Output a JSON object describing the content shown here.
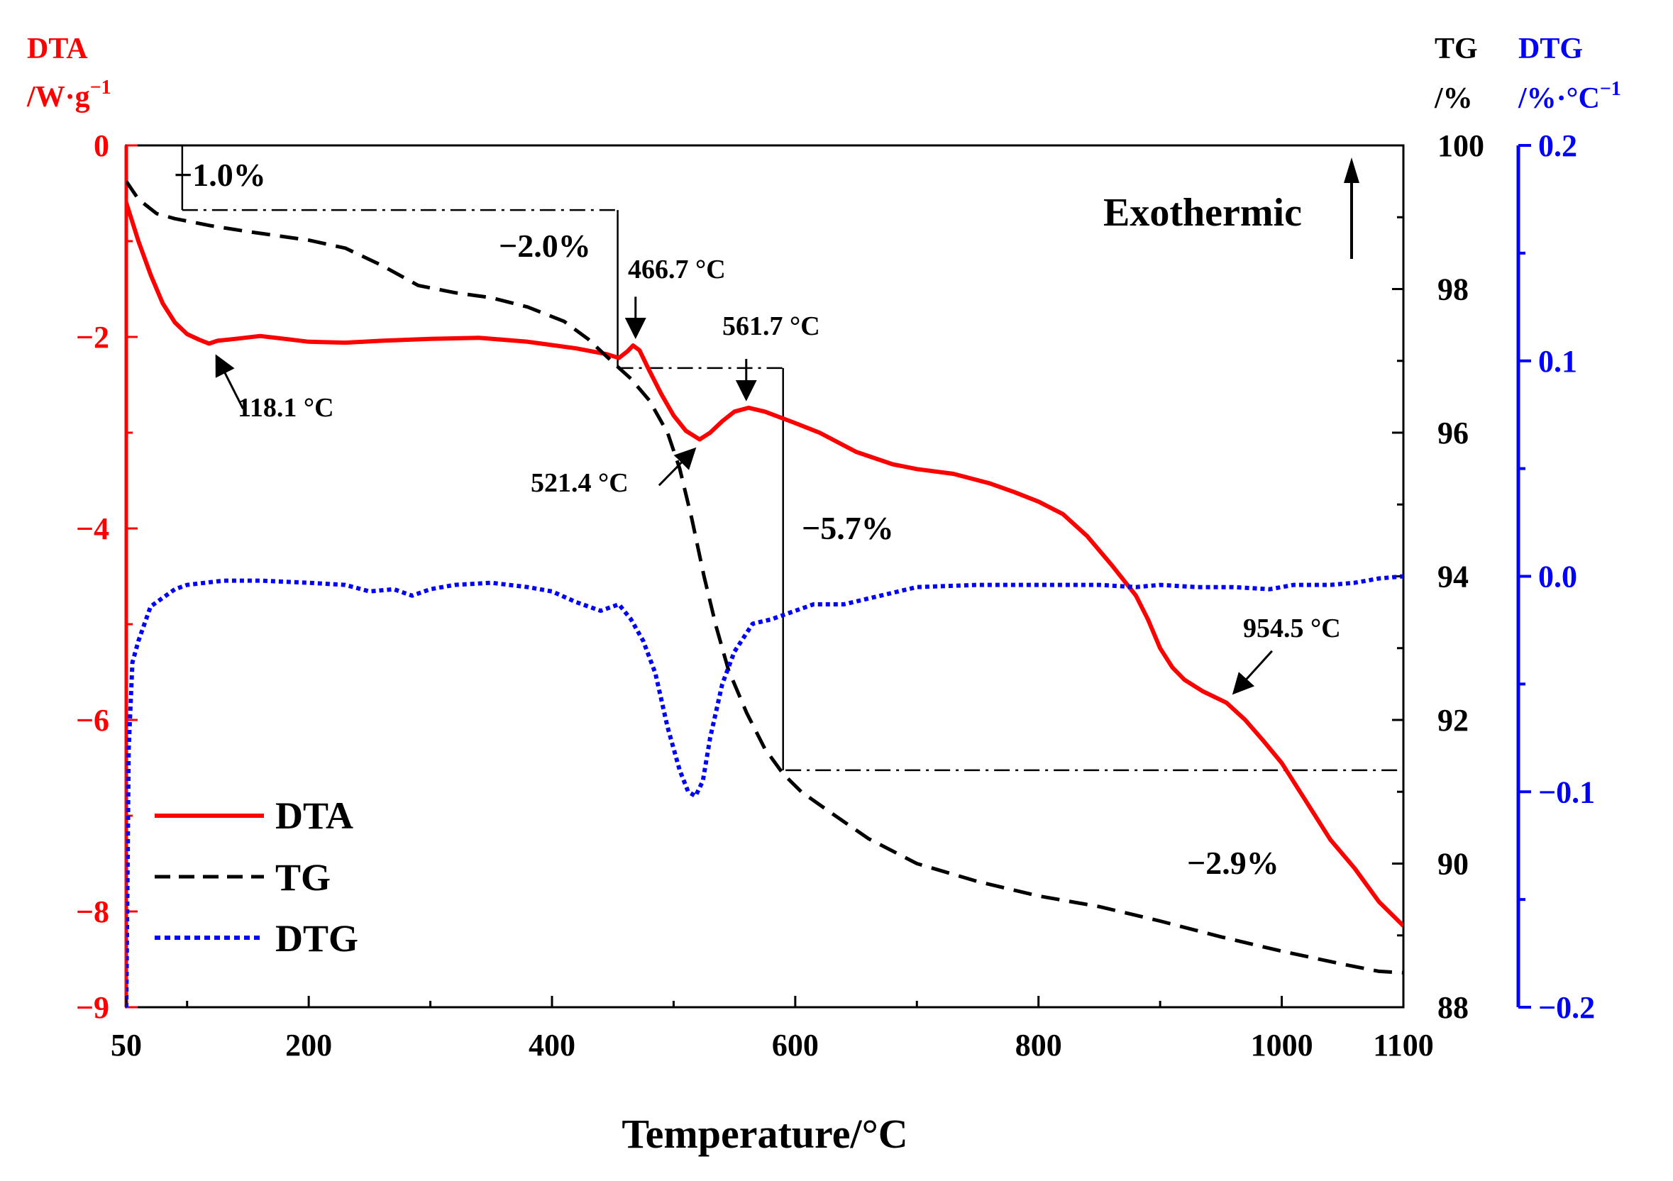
{
  "chart_data": {
    "type": "line",
    "xlabel": "Temperature/°C",
    "xlim": [
      50,
      1100
    ],
    "xticks": [
      50,
      200,
      400,
      600,
      800,
      1000,
      1100
    ],
    "y_left": {
      "title_line1": "DTA",
      "title_line2": "/W·g",
      "title_sup": "−1",
      "ylim": [
        -9,
        0
      ],
      "ticks": [
        0,
        -2,
        -4,
        -6,
        -8,
        -9
      ],
      "color": "#ff0000"
    },
    "y_right_tg": {
      "title_line1": "TG",
      "title_line2": "/%",
      "ylim": [
        88,
        100
      ],
      "ticks": [
        100,
        98,
        96,
        94,
        92,
        90,
        88
      ],
      "color": "#000000"
    },
    "y_right_dtg": {
      "title_line1": "DTG",
      "title_line2": "/%·°C",
      "title_sup": "−1",
      "ylim": [
        -0.2,
        0.2
      ],
      "ticks": [
        "0.2",
        "0.1",
        "0.0",
        "−0.1",
        "−0.2"
      ],
      "tick_values": [
        0.2,
        0.1,
        0.0,
        -0.1,
        -0.2
      ],
      "color": "#0000ff"
    },
    "series": [
      {
        "name": "DTA",
        "axis": "dta",
        "color": "#ff0000",
        "style": "solid",
        "points": [
          [
            50,
            -0.6
          ],
          [
            55,
            -0.8
          ],
          [
            60,
            -1.0
          ],
          [
            70,
            -1.35
          ],
          [
            80,
            -1.65
          ],
          [
            90,
            -1.85
          ],
          [
            100,
            -1.97
          ],
          [
            110,
            -2.03
          ],
          [
            118.1,
            -2.07
          ],
          [
            125,
            -2.04
          ],
          [
            140,
            -2.02
          ],
          [
            160,
            -1.99
          ],
          [
            180,
            -2.02
          ],
          [
            200,
            -2.05
          ],
          [
            230,
            -2.06
          ],
          [
            260,
            -2.04
          ],
          [
            300,
            -2.02
          ],
          [
            340,
            -2.01
          ],
          [
            380,
            -2.05
          ],
          [
            420,
            -2.12
          ],
          [
            445,
            -2.18
          ],
          [
            455,
            -2.22
          ],
          [
            462,
            -2.15
          ],
          [
            466.7,
            -2.09
          ],
          [
            472,
            -2.14
          ],
          [
            480,
            -2.35
          ],
          [
            490,
            -2.6
          ],
          [
            500,
            -2.82
          ],
          [
            510,
            -2.98
          ],
          [
            521.4,
            -3.07
          ],
          [
            530,
            -3.0
          ],
          [
            540,
            -2.88
          ],
          [
            550,
            -2.78
          ],
          [
            561.7,
            -2.74
          ],
          [
            575,
            -2.78
          ],
          [
            600,
            -2.9
          ],
          [
            620,
            -3.0
          ],
          [
            650,
            -3.2
          ],
          [
            680,
            -3.33
          ],
          [
            700,
            -3.38
          ],
          [
            730,
            -3.43
          ],
          [
            760,
            -3.53
          ],
          [
            780,
            -3.62
          ],
          [
            800,
            -3.72
          ],
          [
            820,
            -3.85
          ],
          [
            840,
            -4.08
          ],
          [
            860,
            -4.38
          ],
          [
            880,
            -4.7
          ],
          [
            890,
            -4.95
          ],
          [
            900,
            -5.25
          ],
          [
            910,
            -5.45
          ],
          [
            920,
            -5.58
          ],
          [
            935,
            -5.7
          ],
          [
            954.5,
            -5.82
          ],
          [
            970,
            -6.0
          ],
          [
            985,
            -6.22
          ],
          [
            1000,
            -6.45
          ],
          [
            1020,
            -6.85
          ],
          [
            1040,
            -7.25
          ],
          [
            1060,
            -7.55
          ],
          [
            1080,
            -7.9
          ],
          [
            1100,
            -8.15
          ]
        ]
      },
      {
        "name": "TG",
        "axis": "tg",
        "color": "#000000",
        "style": "dashed",
        "points": [
          [
            50,
            99.5
          ],
          [
            60,
            99.25
          ],
          [
            75,
            99.05
          ],
          [
            90,
            98.98
          ],
          [
            120,
            98.88
          ],
          [
            150,
            98.8
          ],
          [
            200,
            98.68
          ],
          [
            230,
            98.57
          ],
          [
            260,
            98.33
          ],
          [
            290,
            98.05
          ],
          [
            320,
            97.95
          ],
          [
            350,
            97.88
          ],
          [
            380,
            97.75
          ],
          [
            410,
            97.55
          ],
          [
            430,
            97.3
          ],
          [
            450,
            96.98
          ],
          [
            465,
            96.75
          ],
          [
            480,
            96.45
          ],
          [
            495,
            96.0
          ],
          [
            505,
            95.5
          ],
          [
            515,
            94.8
          ],
          [
            525,
            94.0
          ],
          [
            535,
            93.3
          ],
          [
            545,
            92.7
          ],
          [
            560,
            92.1
          ],
          [
            575,
            91.6
          ],
          [
            590,
            91.25
          ],
          [
            605,
            91.0
          ],
          [
            630,
            90.7
          ],
          [
            660,
            90.35
          ],
          [
            700,
            90.0
          ],
          [
            750,
            89.75
          ],
          [
            800,
            89.55
          ],
          [
            850,
            89.4
          ],
          [
            900,
            89.2
          ],
          [
            950,
            88.98
          ],
          [
            1000,
            88.78
          ],
          [
            1050,
            88.6
          ],
          [
            1080,
            88.5
          ],
          [
            1100,
            88.48
          ]
        ]
      },
      {
        "name": "DTG",
        "axis": "dtg",
        "color": "#0000ff",
        "style": "dotted",
        "points": [
          [
            50,
            -0.2
          ],
          [
            51,
            -0.14
          ],
          [
            52,
            -0.08
          ],
          [
            55,
            -0.04
          ],
          [
            60,
            -0.03
          ],
          [
            70,
            -0.014
          ],
          [
            80,
            -0.01
          ],
          [
            90,
            -0.006
          ],
          [
            100,
            -0.004
          ],
          [
            130,
            -0.002
          ],
          [
            160,
            -0.002
          ],
          [
            200,
            -0.003
          ],
          [
            230,
            -0.004
          ],
          [
            250,
            -0.007
          ],
          [
            270,
            -0.006
          ],
          [
            285,
            -0.009
          ],
          [
            300,
            -0.006
          ],
          [
            320,
            -0.004
          ],
          [
            350,
            -0.003
          ],
          [
            380,
            -0.005
          ],
          [
            400,
            -0.007
          ],
          [
            420,
            -0.012
          ],
          [
            440,
            -0.016
          ],
          [
            455,
            -0.013
          ],
          [
            465,
            -0.02
          ],
          [
            475,
            -0.03
          ],
          [
            485,
            -0.045
          ],
          [
            495,
            -0.07
          ],
          [
            505,
            -0.09
          ],
          [
            512,
            -0.1
          ],
          [
            518,
            -0.102
          ],
          [
            524,
            -0.095
          ],
          [
            530,
            -0.075
          ],
          [
            540,
            -0.05
          ],
          [
            550,
            -0.035
          ],
          [
            565,
            -0.022
          ],
          [
            580,
            -0.02
          ],
          [
            600,
            -0.016
          ],
          [
            615,
            -0.013
          ],
          [
            640,
            -0.013
          ],
          [
            670,
            -0.009
          ],
          [
            700,
            -0.005
          ],
          [
            750,
            -0.004
          ],
          [
            800,
            -0.004
          ],
          [
            850,
            -0.004
          ],
          [
            880,
            -0.005
          ],
          [
            900,
            -0.004
          ],
          [
            930,
            -0.005
          ],
          [
            960,
            -0.005
          ],
          [
            990,
            -0.006
          ],
          [
            1010,
            -0.004
          ],
          [
            1040,
            -0.004
          ],
          [
            1060,
            -0.003
          ],
          [
            1080,
            -0.001
          ],
          [
            1100,
            0.0
          ]
        ]
      }
    ],
    "legend": {
      "position": "bottom-left",
      "entries": [
        "DTA",
        "TG",
        "DTG"
      ]
    },
    "annotations": {
      "peaks": [
        {
          "text": "118.1 °C",
          "temperature": 118.1
        },
        {
          "text": "466.7 °C",
          "temperature": 466.7
        },
        {
          "text": "521.4 °C",
          "temperature": 521.4
        },
        {
          "text": "561.7 °C",
          "temperature": 561.7
        },
        {
          "text": "954.5 °C",
          "temperature": 954.5
        }
      ],
      "mass_losses": [
        "−1.0%",
        "−2.0%",
        "−5.7%",
        "−2.9%"
      ],
      "exothermic": "Exothermic"
    }
  }
}
